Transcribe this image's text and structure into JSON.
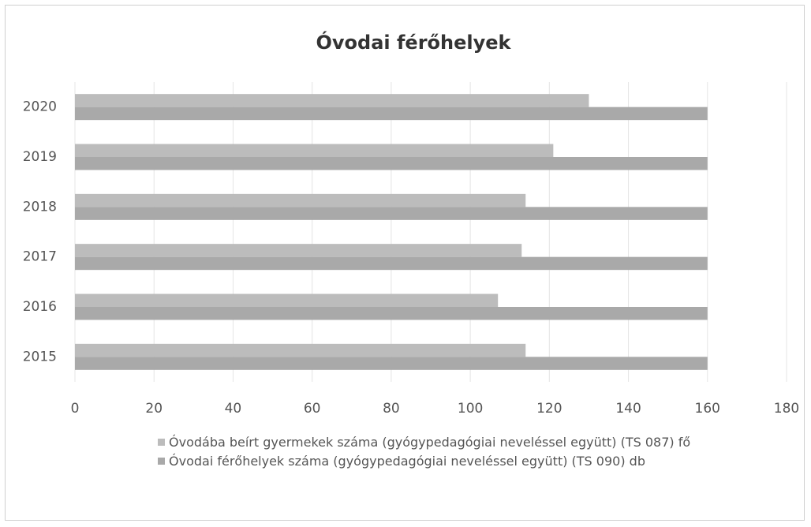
{
  "chart_data": {
    "type": "bar",
    "orientation": "horizontal",
    "title": "Óvodai férőhelyek",
    "categories": [
      "2015",
      "2016",
      "2017",
      "2018",
      "2019",
      "2020"
    ],
    "series": [
      {
        "name": "Óvodába beírt gyermekek száma (gyógypedagógiai neveléssel együtt) (TS 087) fő",
        "color": "#bcbcbc",
        "values": [
          114,
          107,
          113,
          114,
          121,
          130
        ]
      },
      {
        "name": "Óvodai férőhelyek száma (gyógypedagógiai neveléssel együtt) (TS 090) db",
        "color": "#a9a9a9",
        "values": [
          160,
          160,
          160,
          160,
          160,
          160
        ]
      }
    ],
    "xlim": [
      0,
      180
    ],
    "xticks": [
      0,
      20,
      40,
      60,
      80,
      100,
      120,
      140,
      160,
      180
    ],
    "grid": true,
    "legend": "bottom"
  }
}
